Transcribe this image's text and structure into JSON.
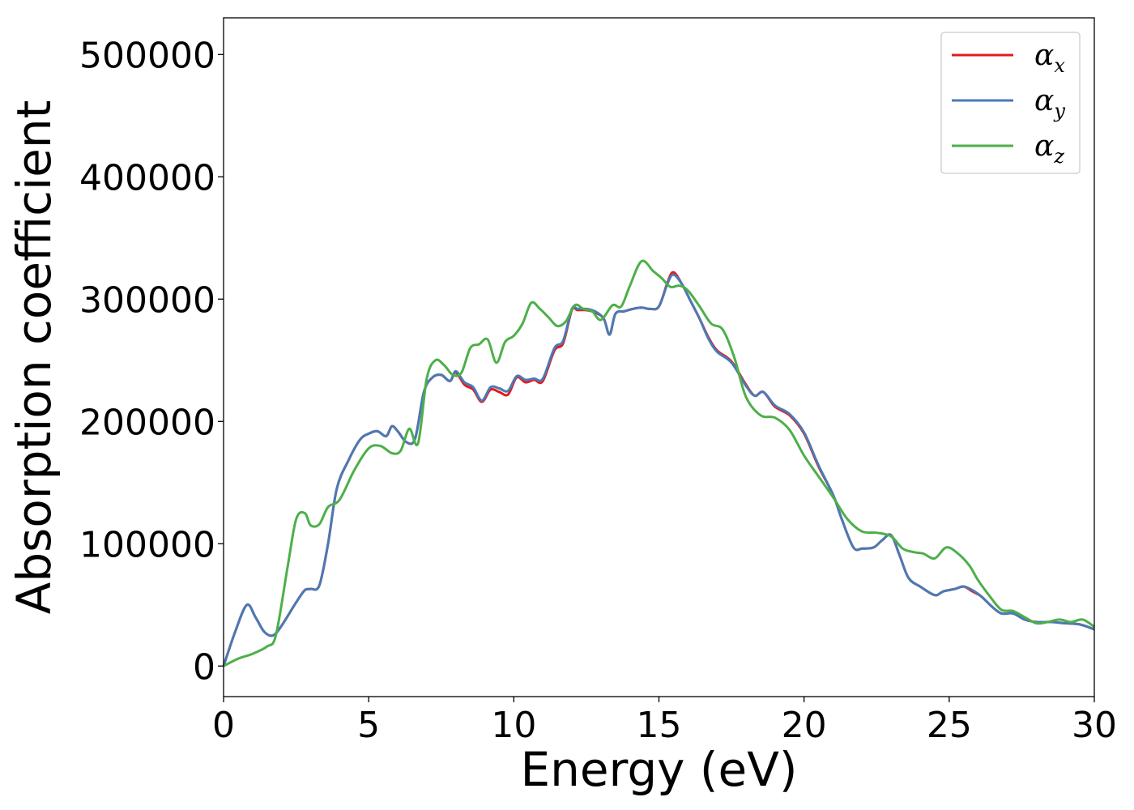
{
  "chart_data": {
    "type": "line",
    "title": "",
    "xlabel": "Energy (eV)",
    "ylabel": "Absorption coefficient",
    "xlim": [
      0,
      30
    ],
    "ylim": [
      -25000,
      530000
    ],
    "x_ticks": [
      0,
      5,
      10,
      15,
      20,
      25,
      30
    ],
    "y_ticks": [
      0,
      100000,
      200000,
      300000,
      400000,
      500000
    ],
    "grid": false,
    "legend_position": "top-right",
    "series": [
      {
        "name": "α",
        "subscript": "x",
        "color": "#e41a1c",
        "x": [
          0,
          0.4,
          0.8,
          1.1,
          1.4,
          1.7,
          2.0,
          2.5,
          2.8,
          3.0,
          3.3,
          3.6,
          3.9,
          4.3,
          4.7,
          5.0,
          5.3,
          5.6,
          5.8,
          6.0,
          6.3,
          6.6,
          6.9,
          7.2,
          7.5,
          7.8,
          8.0,
          8.3,
          8.6,
          8.9,
          9.2,
          9.5,
          9.8,
          10.1,
          10.4,
          10.7,
          11.0,
          11.4,
          11.7,
          12.0,
          12.2,
          12.5,
          12.8,
          13.1,
          13.3,
          13.5,
          13.8,
          14.1,
          14.4,
          14.7,
          15.0,
          15.3,
          15.5,
          15.8,
          16.1,
          16.4,
          16.7,
          17.0,
          17.5,
          18.0,
          18.3,
          18.6,
          19.0,
          19.5,
          20.0,
          20.5,
          21.0,
          21.3,
          21.7,
          22.0,
          22.4,
          22.7,
          23.0,
          23.3,
          23.6,
          24.0,
          24.5,
          24.8,
          25.2,
          25.5,
          25.8,
          26.1,
          26.5,
          26.8,
          27.2,
          27.6,
          28.0,
          28.5,
          29.0,
          29.5,
          30.0
        ],
        "values": [
          0,
          28000,
          50000,
          40000,
          28000,
          25000,
          33000,
          52000,
          62000,
          63000,
          66000,
          100000,
          145000,
          168000,
          185000,
          190000,
          192000,
          188000,
          196000,
          192000,
          183000,
          186000,
          224000,
          236000,
          238000,
          233000,
          240000,
          230000,
          226000,
          216000,
          226000,
          224000,
          222000,
          236000,
          232000,
          234000,
          233000,
          258000,
          264000,
          291000,
          291000,
          291000,
          289000,
          284000,
          271000,
          288000,
          290000,
          292000,
          293000,
          292000,
          294000,
          314000,
          322000,
          312000,
          298000,
          284000,
          269000,
          258000,
          249000,
          230000,
          221000,
          224000,
          212000,
          205000,
          190000,
          163000,
          140000,
          120000,
          97000,
          96000,
          97000,
          103000,
          107000,
          90000,
          72000,
          65000,
          58000,
          61000,
          63000,
          65000,
          61000,
          57000,
          48000,
          43000,
          43000,
          38000,
          36000,
          36000,
          35000,
          34000,
          30000
        ]
      },
      {
        "name": "α",
        "subscript": "y",
        "color": "#4a7ab5",
        "x": [
          0,
          0.4,
          0.8,
          1.1,
          1.4,
          1.7,
          2.0,
          2.5,
          2.8,
          3.0,
          3.3,
          3.6,
          3.9,
          4.3,
          4.7,
          5.0,
          5.3,
          5.6,
          5.8,
          6.0,
          6.3,
          6.6,
          6.9,
          7.2,
          7.5,
          7.8,
          8.0,
          8.3,
          8.6,
          8.9,
          9.2,
          9.5,
          9.8,
          10.1,
          10.4,
          10.7,
          11.0,
          11.4,
          11.7,
          12.0,
          12.2,
          12.5,
          12.8,
          13.1,
          13.3,
          13.5,
          13.8,
          14.1,
          14.4,
          14.7,
          15.0,
          15.3,
          15.5,
          15.8,
          16.1,
          16.4,
          16.7,
          17.0,
          17.5,
          18.0,
          18.3,
          18.6,
          19.0,
          19.5,
          20.0,
          20.5,
          21.0,
          21.3,
          21.7,
          22.0,
          22.4,
          22.7,
          23.0,
          23.3,
          23.6,
          24.0,
          24.5,
          24.8,
          25.2,
          25.5,
          25.8,
          26.1,
          26.5,
          26.8,
          27.2,
          27.6,
          28.0,
          28.5,
          29.0,
          29.5,
          30.0
        ],
        "values": [
          0,
          28000,
          50000,
          40000,
          28000,
          25000,
          33000,
          52000,
          62000,
          63000,
          66000,
          100000,
          145000,
          168000,
          185000,
          190000,
          192000,
          188000,
          196000,
          192000,
          183000,
          186000,
          224000,
          236000,
          238000,
          233000,
          241000,
          232000,
          228000,
          217000,
          228000,
          227000,
          225000,
          237000,
          234000,
          235000,
          235000,
          260000,
          266000,
          292000,
          292000,
          292000,
          290000,
          284000,
          271000,
          288000,
          290000,
          292000,
          293000,
          292000,
          294000,
          313000,
          320000,
          312000,
          298000,
          284000,
          268000,
          257000,
          248000,
          229000,
          221000,
          224000,
          213000,
          206000,
          191000,
          164000,
          140000,
          120000,
          97000,
          96000,
          97000,
          103000,
          107000,
          90000,
          72000,
          65000,
          58000,
          61000,
          63000,
          65000,
          62000,
          57000,
          48000,
          43000,
          43000,
          38000,
          36000,
          36000,
          35000,
          34000,
          30000
        ]
      },
      {
        "name": "α",
        "subscript": "z",
        "color": "#4daf4a",
        "x": [
          0,
          0.5,
          1.0,
          1.5,
          1.8,
          2.2,
          2.5,
          2.8,
          3.0,
          3.3,
          3.6,
          4.0,
          4.5,
          5.0,
          5.4,
          5.8,
          6.1,
          6.4,
          6.7,
          7.0,
          7.3,
          7.6,
          7.9,
          8.2,
          8.5,
          8.8,
          9.1,
          9.4,
          9.7,
          10.0,
          10.3,
          10.6,
          10.9,
          11.2,
          11.5,
          11.8,
          12.1,
          12.4,
          12.7,
          13.0,
          13.4,
          13.7,
          14.0,
          14.4,
          14.8,
          15.1,
          15.4,
          15.7,
          16.0,
          16.4,
          16.8,
          17.2,
          17.6,
          18.0,
          18.5,
          19.0,
          19.5,
          20.0,
          20.5,
          21.0,
          21.5,
          22.0,
          22.5,
          23.0,
          23.4,
          23.8,
          24.1,
          24.5,
          24.9,
          25.3,
          25.7,
          26.0,
          26.4,
          26.8,
          27.2,
          27.6,
          28.0,
          28.4,
          28.8,
          29.2,
          29.6,
          30.0
        ],
        "values": [
          0,
          6000,
          10000,
          16000,
          25000,
          80000,
          120000,
          125000,
          115000,
          116000,
          130000,
          136000,
          160000,
          178000,
          180000,
          174000,
          176000,
          194000,
          182000,
          235000,
          250000,
          246000,
          238000,
          240000,
          260000,
          263000,
          267000,
          248000,
          265000,
          270000,
          280000,
          297000,
          292000,
          285000,
          278000,
          282000,
          295000,
          292000,
          290000,
          283000,
          295000,
          294000,
          311000,
          331000,
          323000,
          317000,
          310000,
          311000,
          307000,
          294000,
          280000,
          275000,
          252000,
          220000,
          205000,
          203000,
          193000,
          172000,
          155000,
          138000,
          120000,
          110000,
          109000,
          106000,
          96000,
          93000,
          92000,
          88000,
          97000,
          92000,
          82000,
          70000,
          57000,
          46000,
          45000,
          40000,
          35000,
          36000,
          38000,
          36000,
          38000,
          32000
        ]
      }
    ]
  }
}
